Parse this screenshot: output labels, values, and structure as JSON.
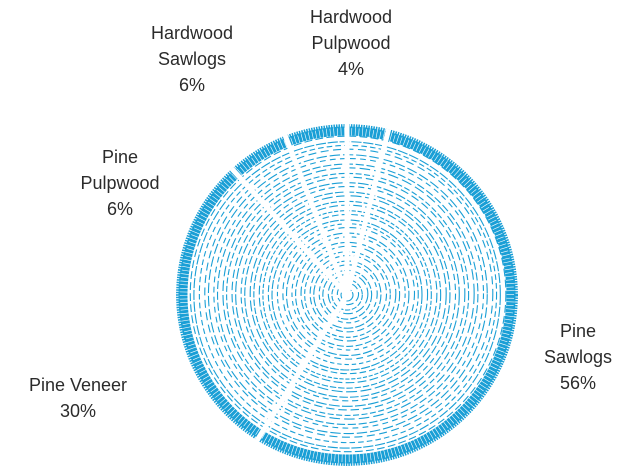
{
  "chart_data": {
    "type": "pie",
    "categories": [
      "Hardwood Pulpwood",
      "Pine Sawlogs",
      "Pine Veneer",
      "Pine Pulpwood",
      "Hardwood Sawlogs"
    ],
    "values": [
      4,
      56,
      30,
      6,
      6
    ],
    "value_labels": [
      "4%",
      "56%",
      "30%",
      "6%",
      "6%"
    ],
    "color": "#1a9fd6"
  }
}
